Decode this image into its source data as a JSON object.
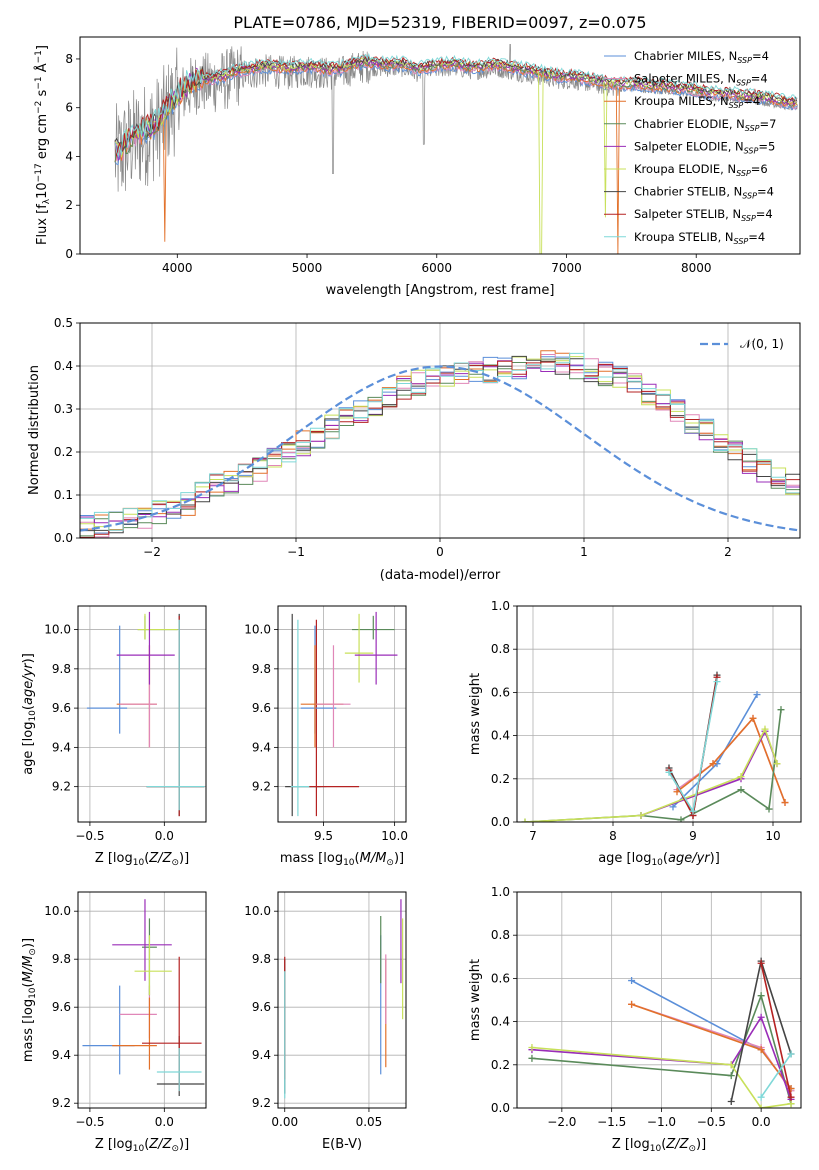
{
  "figure_title": "PLATE=0786, MJD=52319, FIBERID=0097, z=0.075",
  "colors": {
    "Chabrier MILES": "#5b8fd9",
    "Salpeter MILES": "#e087b8",
    "Kroupa MILES": "#e2712a",
    "Chabrier ELODIE": "#5a8a5a",
    "Salpeter ELODIE": "#9a2db8",
    "Kroupa ELODIE": "#c8e05a",
    "Chabrier STELIB": "#444444",
    "Salpeter STELIB": "#b52222",
    "Kroupa STELIB": "#7fd8d8",
    "data": "#888888",
    "normal": "#5b8fd9"
  },
  "chart_data": [
    {
      "type": "line",
      "id": "spectrum",
      "xlabel": "wavelength [Angstrom, rest frame]",
      "ylabel": "Flux [f",
      "xlim": [
        3250,
        8800
      ],
      "ylim": [
        0,
        8.9
      ],
      "xticks": [
        "4000",
        "5000",
        "6000",
        "7000",
        "8000"
      ],
      "yticks": [
        "0",
        "2",
        "4",
        "6",
        "8"
      ],
      "legend": [
        "Chabrier MILES, N",
        "Salpeter MILES, N",
        "Kroupa MILES, N",
        "Chabrier ELODIE, N",
        "Salpeter ELODIE, N",
        "Kroupa ELODIE, N",
        "Chabrier STELIB, N",
        "Salpeter STELIB, N",
        "Kroupa STELIB, N"
      ],
      "legend_nssp": [
        "4",
        "4",
        "4",
        "7",
        "5",
        "6",
        "4",
        "4",
        "4"
      ],
      "continuum": {
        "x": [
          3550,
          3650,
          3750,
          3850,
          3950,
          4050,
          4150,
          4250,
          4350,
          4450,
          4550,
          4650,
          4750,
          4850,
          4950,
          5050,
          5150,
          5250,
          5350,
          5450,
          5550,
          5650,
          5750,
          5850,
          5950,
          6050,
          6150,
          6250,
          6350,
          6450,
          6550,
          6650,
          6750,
          6850,
          6950,
          7050,
          7150,
          7250,
          7350,
          7450,
          7550,
          7650,
          7750,
          7850,
          7950,
          8050,
          8150,
          8250,
          8350,
          8450,
          8550,
          8650,
          8750
        ],
        "y": [
          4.0,
          4.6,
          4.9,
          5.2,
          6.0,
          6.6,
          7.0,
          7.0,
          7.1,
          7.3,
          7.4,
          7.5,
          7.5,
          7.4,
          7.5,
          7.5,
          7.4,
          7.4,
          7.6,
          7.7,
          7.6,
          7.6,
          7.6,
          7.4,
          7.5,
          7.6,
          7.6,
          7.5,
          7.5,
          7.6,
          7.5,
          7.4,
          7.3,
          7.2,
          7.1,
          7.1,
          7.0,
          6.9,
          6.8,
          6.8,
          6.8,
          6.7,
          6.7,
          6.6,
          6.6,
          6.5,
          6.4,
          6.4,
          6.3,
          6.3,
          6.2,
          6.1,
          6.0
        ]
      }
    },
    {
      "type": "line",
      "id": "residuals",
      "xlabel": "(data-model)/error",
      "ylabel": "Normed distribution",
      "xlim": [
        -2.5,
        2.5
      ],
      "ylim": [
        0,
        0.5
      ],
      "xticks": [
        "−2",
        "−1",
        "0",
        "1",
        "2"
      ],
      "yticks": [
        "0.0",
        "0.1",
        "0.2",
        "0.3",
        "0.4",
        "0.5"
      ],
      "legend": "𝒩(0, 1)",
      "bin_width": 0.1,
      "histogram": [
        0.03,
        0.03,
        0.04,
        0.04,
        0.05,
        0.06,
        0.07,
        0.08,
        0.1,
        0.12,
        0.13,
        0.15,
        0.16,
        0.18,
        0.2,
        0.22,
        0.23,
        0.26,
        0.28,
        0.29,
        0.31,
        0.33,
        0.35,
        0.36,
        0.37,
        0.38,
        0.38,
        0.39,
        0.39,
        0.4,
        0.4,
        0.4,
        0.41,
        0.4,
        0.4,
        0.39,
        0.38,
        0.37,
        0.36,
        0.34,
        0.32,
        0.3,
        0.27,
        0.25,
        0.22,
        0.2,
        0.18,
        0.16,
        0.14,
        0.12
      ]
    },
    {
      "type": "scatter",
      "id": "age-vs-Z",
      "xlabel": "Z [log",
      "ylabel": "age  [log",
      "xlim": [
        -0.58,
        0.28
      ],
      "ylim": [
        9.02,
        10.12
      ],
      "xticks": [
        "−0.5",
        "0.0"
      ],
      "yticks": [
        "9.2",
        "9.4",
        "9.6",
        "9.8",
        "10.0"
      ],
      "points": [
        {
          "model": "Chabrier MILES",
          "x": -0.3,
          "y": 9.6,
          "xerr": [
            0.22,
            0.05
          ],
          "yerr": [
            0.13,
            0.42
          ]
        },
        {
          "model": "Kroupa MILES",
          "x": -0.1,
          "y": 9.62,
          "xerr": [
            0.22,
            0.05
          ],
          "yerr": [
            0.22,
            0.3
          ]
        },
        {
          "model": "Salpeter MILES",
          "x": -0.1,
          "y": 9.62,
          "xerr": [
            0.2,
            0.05
          ],
          "yerr": [
            0.22,
            0.3
          ]
        },
        {
          "model": "Chabrier ELODIE",
          "x": -0.13,
          "y": 10.0,
          "xerr": [
            0.05,
            0.22
          ],
          "yerr": [
            0.05,
            0.07
          ]
        },
        {
          "model": "Kroupa ELODIE",
          "x": -0.13,
          "y": 10.0,
          "xerr": [
            0.05,
            0.22
          ],
          "yerr": [
            0.05,
            0.08
          ]
        },
        {
          "model": "Salpeter ELODIE",
          "x": -0.1,
          "y": 9.87,
          "xerr": [
            0.22,
            0.17
          ],
          "yerr": [
            0.15,
            0.22
          ]
        },
        {
          "model": "Chabrier STELIB",
          "x": 0.1,
          "y": 9.2,
          "xerr": [
            0.22,
            0.17
          ],
          "yerr": [
            0.15,
            0.88
          ]
        },
        {
          "model": "Salpeter STELIB",
          "x": 0.1,
          "y": 9.2,
          "xerr": [
            0.22,
            0.17
          ],
          "yerr": [
            0.15,
            0.87
          ]
        },
        {
          "model": "Kroupa STELIB",
          "x": 0.1,
          "y": 9.2,
          "xerr": [
            0.22,
            0.17
          ],
          "yerr": [
            0.12,
            0.85
          ]
        }
      ]
    },
    {
      "type": "scatter",
      "id": "age-vs-mass",
      "xlabel": "mass [log",
      "ylabel": "",
      "xlim": [
        9.18,
        10.08
      ],
      "ylim": [
        9.02,
        10.12
      ],
      "xticks": [
        "9.5",
        "10.0"
      ],
      "yticks": [
        "9.2",
        "9.4",
        "9.6",
        "9.8",
        "10.0"
      ],
      "points": [
        {
          "model": "Chabrier STELIB",
          "x": 9.28,
          "y": 9.2,
          "xerr": [
            0.05,
            0.2
          ],
          "yerr": [
            0.15,
            0.88
          ]
        },
        {
          "model": "Kroupa STELIB",
          "x": 9.32,
          "y": 9.2,
          "xerr": [
            0.05,
            0.2
          ],
          "yerr": [
            0.15,
            0.85
          ]
        },
        {
          "model": "Salpeter STELIB",
          "x": 9.45,
          "y": 9.2,
          "xerr": [
            0.05,
            0.3
          ],
          "yerr": [
            0.15,
            0.85
          ]
        },
        {
          "model": "Chabrier MILES",
          "x": 9.44,
          "y": 9.6,
          "xerr": [
            0.1,
            0.15
          ],
          "yerr": [
            0.13,
            0.42
          ]
        },
        {
          "model": "Kroupa MILES",
          "x": 9.44,
          "y": 9.62,
          "xerr": [
            0.1,
            0.2
          ],
          "yerr": [
            0.22,
            0.3
          ]
        },
        {
          "model": "Salpeter MILES",
          "x": 9.57,
          "y": 9.62,
          "xerr": [
            0.12,
            0.12
          ],
          "yerr": [
            0.22,
            0.3
          ]
        },
        {
          "model": "Chabrier ELODIE",
          "x": 9.85,
          "y": 10.0,
          "xerr": [
            0.15,
            0.15
          ],
          "yerr": [
            0.05,
            0.07
          ]
        },
        {
          "model": "Kroupa ELODIE",
          "x": 9.75,
          "y": 9.88,
          "xerr": [
            0.1,
            0.1
          ],
          "yerr": [
            0.15,
            0.2
          ]
        },
        {
          "model": "Salpeter ELODIE",
          "x": 9.87,
          "y": 9.87,
          "xerr": [
            0.15,
            0.15
          ],
          "yerr": [
            0.15,
            0.22
          ]
        }
      ]
    },
    {
      "type": "line",
      "id": "mass-weight-vs-age",
      "xlabel": "age  [log",
      "ylabel": "mass weight",
      "xlim": [
        6.8,
        10.35
      ],
      "ylim": [
        0,
        1.0
      ],
      "xticks": [
        "7",
        "8",
        "9",
        "10"
      ],
      "yticks": [
        "0.0",
        "0.2",
        "0.4",
        "0.6",
        "0.8",
        "1.0"
      ],
      "series": [
        {
          "model": "Chabrier MILES",
          "x": [
            8.75,
            9.3,
            9.8
          ],
          "y": [
            0.07,
            0.27,
            0.59
          ]
        },
        {
          "model": "Salpeter MILES",
          "x": [
            8.8,
            9.25,
            9.75,
            10.15
          ],
          "y": [
            0.15,
            0.27,
            0.48,
            0.09
          ]
        },
        {
          "model": "Kroupa MILES",
          "x": [
            8.8,
            9.25,
            9.75,
            10.15
          ],
          "y": [
            0.14,
            0.27,
            0.48,
            0.09
          ]
        },
        {
          "model": "Chabrier ELODIE",
          "x": [
            6.9,
            8.35,
            8.85,
            9.6,
            9.95,
            10.1
          ],
          "y": [
            0.0,
            0.03,
            0.01,
            0.15,
            0.06,
            0.52
          ]
        },
        {
          "model": "Salpeter ELODIE",
          "x": [
            8.35,
            9.6,
            9.9,
            10.05
          ],
          "y": [
            0.03,
            0.2,
            0.42,
            0.27
          ]
        },
        {
          "model": "Kroupa ELODIE",
          "x": [
            6.9,
            8.35,
            9.6,
            9.9,
            10.05
          ],
          "y": [
            0.0,
            0.03,
            0.21,
            0.43,
            0.27
          ]
        },
        {
          "model": "Chabrier STELIB",
          "x": [
            8.7,
            9.0,
            9.3
          ],
          "y": [
            0.25,
            0.03,
            0.68
          ]
        },
        {
          "model": "Salpeter STELIB",
          "x": [
            8.7,
            9.0,
            9.3
          ],
          "y": [
            0.24,
            0.03,
            0.67
          ]
        },
        {
          "model": "Kroupa STELIB",
          "x": [
            8.7,
            9.0,
            9.3
          ],
          "y": [
            0.23,
            0.05,
            0.65
          ]
        }
      ]
    },
    {
      "type": "scatter",
      "id": "mass-vs-Z",
      "xlabel": "Z [log",
      "ylabel": "mass [log",
      "xlim": [
        -0.58,
        0.28
      ],
      "ylim": [
        9.18,
        10.08
      ],
      "xticks": [
        "−0.5",
        "0.0"
      ],
      "yticks": [
        "9.2",
        "9.4",
        "9.6",
        "9.8",
        "10.0"
      ],
      "points": [
        {
          "model": "Chabrier MILES",
          "x": -0.3,
          "y": 9.44,
          "xerr": [
            0.25,
            0.1
          ],
          "yerr": [
            0.12,
            0.25
          ]
        },
        {
          "model": "Salpeter MILES",
          "x": -0.1,
          "y": 9.57,
          "xerr": [
            0.2,
            0.05
          ],
          "yerr": [
            0.1,
            0.12
          ]
        },
        {
          "model": "Kroupa MILES",
          "x": -0.1,
          "y": 9.44,
          "xerr": [
            0.25,
            0.05
          ],
          "yerr": [
            0.1,
            0.2
          ]
        },
        {
          "model": "Chabrier ELODIE",
          "x": -0.1,
          "y": 9.85,
          "xerr": [
            0.05,
            0.05
          ],
          "yerr": [
            0.2,
            0.12
          ]
        },
        {
          "model": "Salpeter ELODIE",
          "x": -0.13,
          "y": 9.86,
          "xerr": [
            0.22,
            0.18
          ],
          "yerr": [
            0.15,
            0.19
          ]
        },
        {
          "model": "Kroupa ELODIE",
          "x": -0.1,
          "y": 9.75,
          "xerr": [
            0.1,
            0.15
          ],
          "yerr": [
            0.1,
            0.15
          ]
        },
        {
          "model": "Chabrier STELIB",
          "x": 0.1,
          "y": 9.28,
          "xerr": [
            0.15,
            0.17
          ],
          "yerr": [
            0.05,
            0.2
          ]
        },
        {
          "model": "Salpeter STELIB",
          "x": 0.1,
          "y": 9.45,
          "xerr": [
            0.25,
            0.15
          ],
          "yerr": [
            0.2,
            0.36
          ]
        },
        {
          "model": "Kroupa STELIB",
          "x": 0.1,
          "y": 9.33,
          "xerr": [
            0.15,
            0.15
          ],
          "yerr": [
            0.08,
            0.1
          ]
        }
      ]
    },
    {
      "type": "scatter",
      "id": "mass-vs-ebv",
      "xlabel": "E(B-V)",
      "ylabel": "",
      "xlim": [
        -0.004,
        0.072
      ],
      "ylim": [
        9.18,
        10.08
      ],
      "xticks": [
        "0.00",
        "0.05"
      ],
      "yticks": [
        "9.2",
        "9.4",
        "9.6",
        "9.8",
        "10.0"
      ],
      "points": [
        {
          "model": "Chabrier STELIB",
          "x": 0.0,
          "y": 9.5,
          "xerr": [
            0,
            0
          ],
          "yerr": [
            0.26,
            0.3
          ]
        },
        {
          "model": "Salpeter STELIB",
          "x": 0.0,
          "y": 9.5,
          "xerr": [
            0,
            0
          ],
          "yerr": [
            0.2,
            0.31
          ]
        },
        {
          "model": "Kroupa STELIB",
          "x": 0.0,
          "y": 9.4,
          "xerr": [
            0,
            0
          ],
          "yerr": [
            0.18,
            0.35
          ]
        },
        {
          "model": "Chabrier MILES",
          "x": 0.057,
          "y": 9.55,
          "xerr": [
            0,
            0
          ],
          "yerr": [
            0.23,
            0.35
          ]
        },
        {
          "model": "Chabrier ELODIE",
          "x": 0.057,
          "y": 9.8,
          "xerr": [
            0,
            0
          ],
          "yerr": [
            0.1,
            0.18
          ]
        },
        {
          "model": "Kroupa MILES",
          "x": 0.06,
          "y": 9.5,
          "xerr": [
            0,
            0
          ],
          "yerr": [
            0.15,
            0.3
          ]
        },
        {
          "model": "Salpeter MILES",
          "x": 0.06,
          "y": 9.65,
          "xerr": [
            0,
            0
          ],
          "yerr": [
            0.12,
            0.17
          ]
        },
        {
          "model": "Salpeter ELODIE",
          "x": 0.069,
          "y": 9.85,
          "xerr": [
            0,
            0
          ],
          "yerr": [
            0.15,
            0.2
          ]
        },
        {
          "model": "Kroupa ELODIE",
          "x": 0.07,
          "y": 9.75,
          "xerr": [
            0,
            0
          ],
          "yerr": [
            0.2,
            0.22
          ]
        }
      ]
    },
    {
      "type": "line",
      "id": "mass-weight-vs-Z",
      "xlabel": "Z [log",
      "ylabel": "mass weight",
      "xlim": [
        -2.45,
        0.4
      ],
      "ylim": [
        0,
        1.0
      ],
      "xticks": [
        "−2.0",
        "−1.5",
        "−1.0",
        "−0.5",
        "0.0"
      ],
      "yticks": [
        "0.0",
        "0.2",
        "0.4",
        "0.6",
        "0.8",
        "1.0"
      ],
      "series": [
        {
          "model": "Chabrier MILES",
          "x": [
            -1.3,
            0.0,
            0.3
          ],
          "y": [
            0.59,
            0.27,
            0.09
          ]
        },
        {
          "model": "Salpeter MILES",
          "x": [
            -1.3,
            0.0,
            0.3
          ],
          "y": [
            0.48,
            0.28,
            0.08
          ]
        },
        {
          "model": "Kroupa MILES",
          "x": [
            -1.3,
            0.0,
            0.3
          ],
          "y": [
            0.48,
            0.27,
            0.09
          ]
        },
        {
          "model": "Chabrier ELODIE",
          "x": [
            -2.3,
            -0.3,
            0.0,
            0.3
          ],
          "y": [
            0.23,
            0.15,
            0.52,
            0.02
          ]
        },
        {
          "model": "Salpeter ELODIE",
          "x": [
            -2.3,
            -0.3,
            0.0,
            0.3
          ],
          "y": [
            0.27,
            0.2,
            0.42,
            0.04
          ]
        },
        {
          "model": "Kroupa ELODIE",
          "x": [
            -2.3,
            -0.3,
            0.0,
            0.3
          ],
          "y": [
            0.28,
            0.2,
            0.0,
            0.02
          ]
        },
        {
          "model": "Chabrier STELIB",
          "x": [
            -0.3,
            0.0,
            0.3
          ],
          "y": [
            0.03,
            0.68,
            0.25
          ]
        },
        {
          "model": "Salpeter STELIB",
          "x": [
            0.0,
            0.3
          ],
          "y": [
            0.67,
            0.05
          ]
        },
        {
          "model": "Kroupa STELIB",
          "x": [
            0.0,
            0.3
          ],
          "y": [
            0.05,
            0.25
          ]
        }
      ]
    }
  ]
}
